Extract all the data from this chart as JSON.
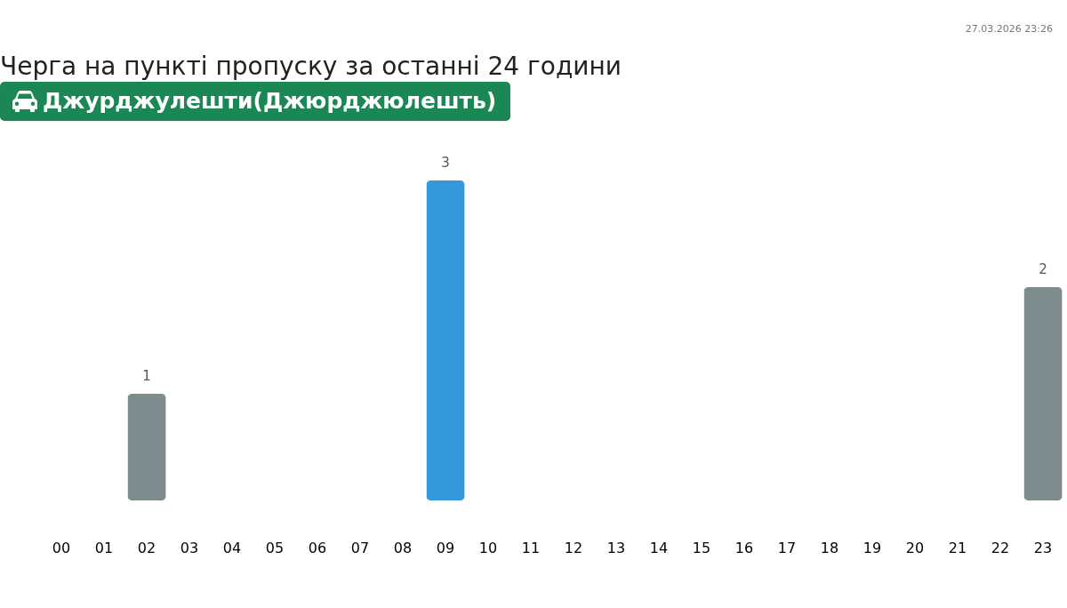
{
  "chart_data": {
    "type": "bar",
    "title": "Черга на пункті пропуску за останні 24 години",
    "subtitle": "Джурджулешти(Джюрджюлешть)",
    "annotations": [
      "27.03.2026 23:26"
    ],
    "categories": [
      "00",
      "01",
      "02",
      "03",
      "04",
      "05",
      "06",
      "07",
      "08",
      "09",
      "10",
      "11",
      "12",
      "13",
      "14",
      "15",
      "16",
      "17",
      "18",
      "19",
      "20",
      "21",
      "22",
      "23"
    ],
    "values": [
      null,
      null,
      1,
      null,
      null,
      null,
      null,
      null,
      null,
      3,
      null,
      null,
      null,
      null,
      null,
      null,
      null,
      null,
      null,
      null,
      null,
      null,
      null,
      2
    ],
    "colors": [
      null,
      null,
      "#7f8c8d",
      null,
      null,
      null,
      null,
      null,
      null,
      "#3498db",
      null,
      null,
      null,
      null,
      null,
      null,
      null,
      null,
      null,
      null,
      null,
      null,
      null,
      "#7f8c8d"
    ],
    "data_labels": true,
    "tick_labels": "x"
  }
}
